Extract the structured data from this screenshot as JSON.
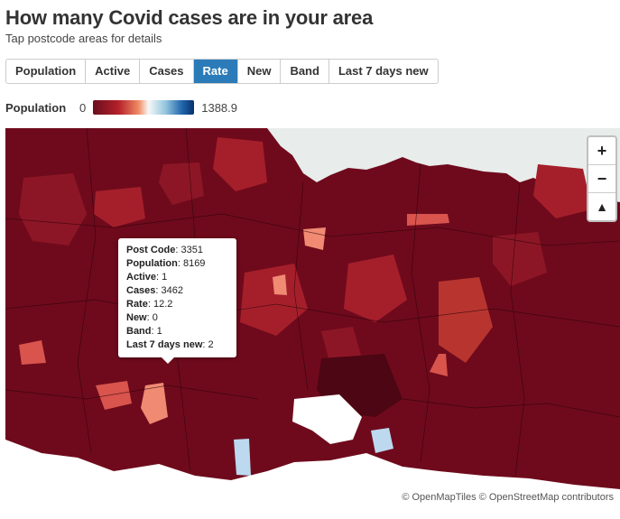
{
  "header": {
    "title": "How many Covid cases are in your area",
    "subtitle": "Tap postcode areas for details"
  },
  "tabs": [
    {
      "label": "Population",
      "active": false
    },
    {
      "label": "Active",
      "active": false
    },
    {
      "label": "Cases",
      "active": false
    },
    {
      "label": "Rate",
      "active": true
    },
    {
      "label": "New",
      "active": false
    },
    {
      "label": "Band",
      "active": false
    },
    {
      "label": "Last 7 days new",
      "active": false
    }
  ],
  "legend": {
    "label": "Population",
    "min": "0",
    "max": "1388.9"
  },
  "zoom": {
    "zoom_in": "+",
    "zoom_out": "−",
    "reset_north": "▲"
  },
  "tooltip": {
    "rows": [
      {
        "key": "Post Code",
        "value": "3351"
      },
      {
        "key": "Population",
        "value": "8169"
      },
      {
        "key": "Active",
        "value": "1"
      },
      {
        "key": "Cases",
        "value": "3462"
      },
      {
        "key": "Rate",
        "value": "12.2"
      },
      {
        "key": "New",
        "value": "0"
      },
      {
        "key": "Band",
        "value": "1"
      },
      {
        "key": "Last 7 days new",
        "value": "2"
      }
    ]
  },
  "attribution": "© OpenMapTiles © OpenStreetMap contributors",
  "colors": {
    "accent": "#2b7bb9",
    "dark_red": "#6f0a1c",
    "mid_red": "#a51f2b",
    "light_red": "#d9544d",
    "salmon": "#f08a73",
    "light_blue": "#bcd9ef",
    "sea": "#e8eceb"
  }
}
